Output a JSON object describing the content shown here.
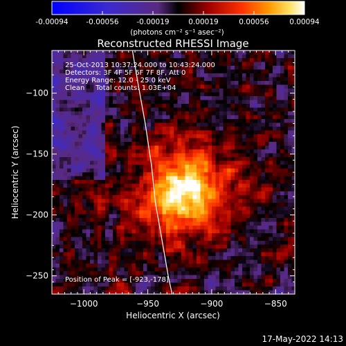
{
  "colorbar": {
    "ticks": [
      "-0.00094",
      "-0.00056",
      "-0.00019",
      "0.00019",
      "0.00056",
      "0.00094"
    ],
    "unit_label": "(photons cm⁻² s⁻¹ asec⁻²)"
  },
  "chart_data": {
    "type": "heatmap",
    "title": "Reconstructed RHESSI Image",
    "xlabel": "Heliocentric X (arcsec)",
    "ylabel": "Heliocentric Y (arcsec)",
    "xlim": [
      -1025,
      -835
    ],
    "ylim": [
      -265,
      -65
    ],
    "xticks": [
      -1000,
      -950,
      -900,
      -850
    ],
    "yticks": [
      -100,
      -150,
      -200,
      -250
    ],
    "zlim": [
      -0.00094,
      0.00094
    ],
    "colormap": "RHESSI heat (blue-violet-black-red-orange-yellow-white)",
    "peak": {
      "x": -923,
      "y": -178
    },
    "limb_line": [
      [
        -962,
        -65
      ],
      [
        -958,
        -90
      ],
      [
        -952,
        -125
      ],
      [
        -947,
        -160
      ],
      [
        -944,
        -190
      ],
      [
        -939,
        -220
      ],
      [
        -934,
        -250
      ],
      [
        -931,
        -265
      ]
    ],
    "annotations": [
      "25-Oct-2013 10:37:24.000 to 10:43:24.000",
      "Detectors: 3F 4F 5F 6F 7F 8F, Att 0",
      "Energy Range: 12.0 - 25.0 keV",
      "Clean     Total counts: 1.03E+04"
    ],
    "peak_label": "Position of Peak = [-923,-178]"
  },
  "footer": {
    "timestamp": "17-May-2022 14:13"
  }
}
